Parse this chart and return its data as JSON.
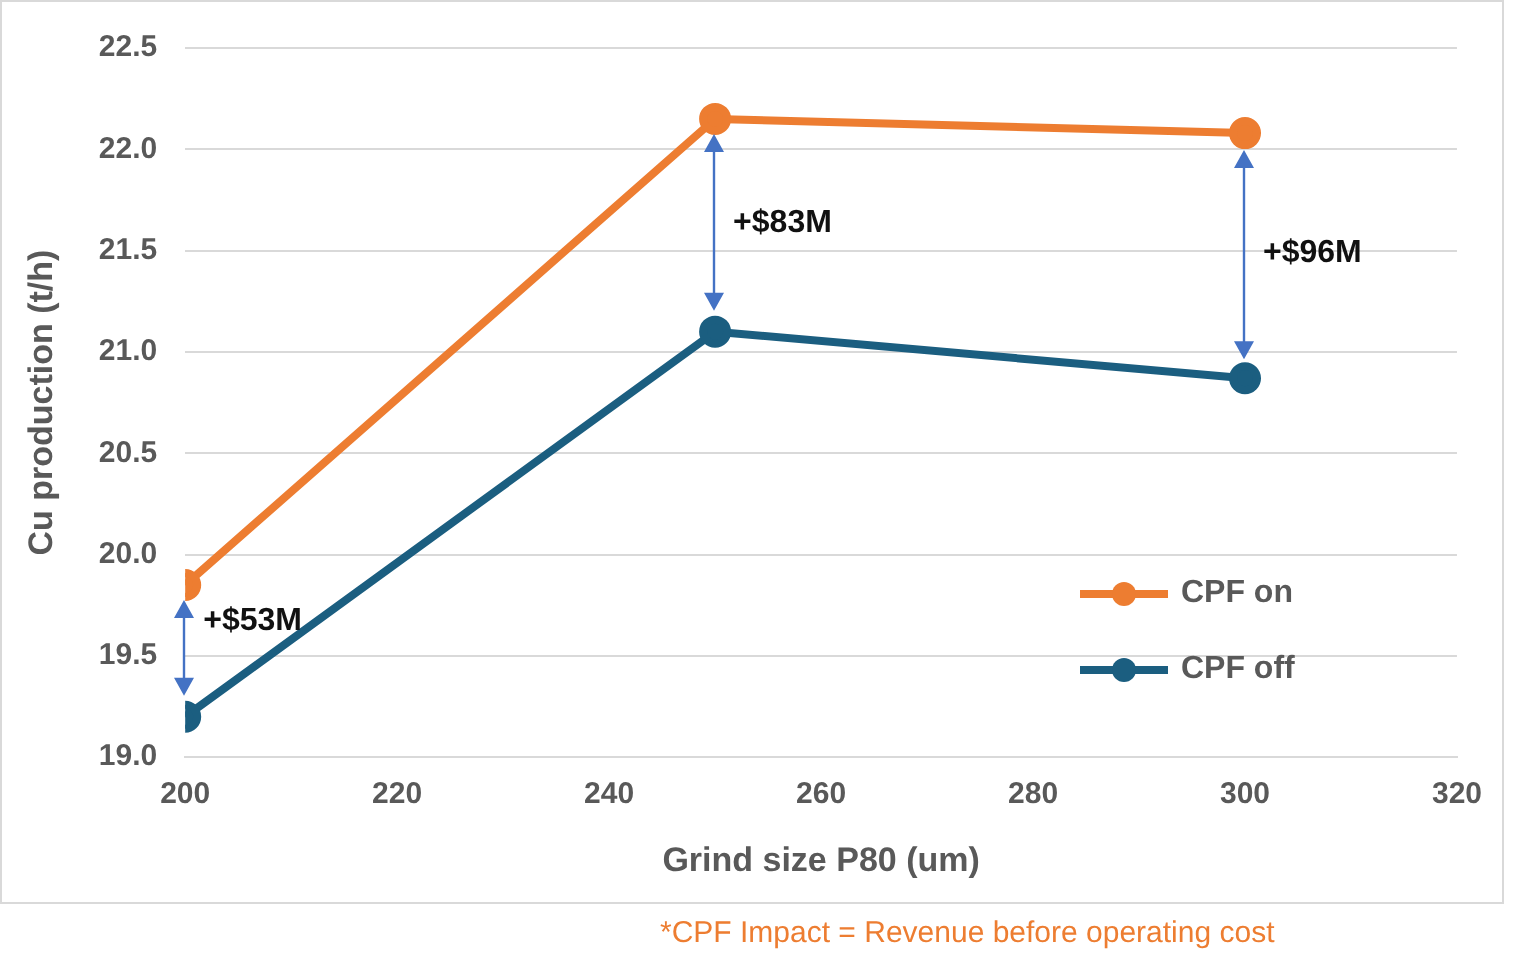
{
  "chart_data": {
    "type": "line",
    "xlabel": "Grind size P80 (um)",
    "ylabel": "Cu production (t/h)",
    "x": [
      200,
      250,
      300
    ],
    "series": [
      {
        "name": "CPF on",
        "color": "#ed7d31",
        "values": [
          19.85,
          22.15,
          22.08
        ]
      },
      {
        "name": "CPF off",
        "color": "#1b5e80",
        "values": [
          19.2,
          21.1,
          20.87
        ]
      }
    ],
    "xlim": [
      200,
      320
    ],
    "xticks": [
      200,
      220,
      240,
      260,
      280,
      300,
      320
    ],
    "ylim": [
      19.0,
      22.5
    ],
    "yticks": [
      {
        "value": 19,
        "label": "19.0"
      },
      19.5,
      {
        "value": 20,
        "label": "20.0"
      },
      20.5,
      {
        "value": 21,
        "label": "21.0"
      },
      21.5,
      {
        "value": 22,
        "label": "22.0"
      },
      22.5
    ],
    "grid": "y",
    "legend": "bottom right",
    "marker": "circle",
    "line_style": "solid",
    "annotations": [
      "+$53M",
      "+$83M",
      "+$96M",
      "*CPF Impact = Revenue before operating cost"
    ]
  }
}
